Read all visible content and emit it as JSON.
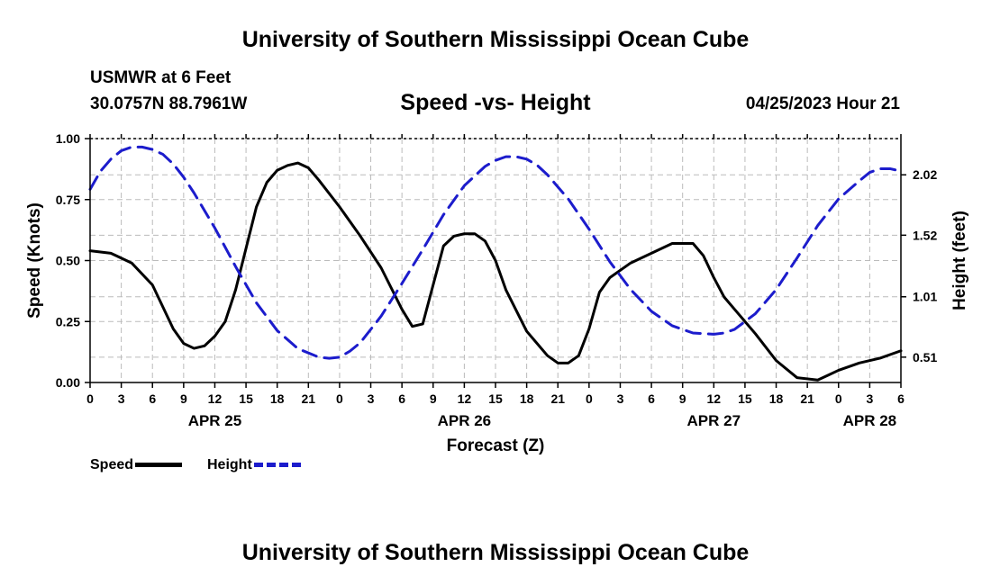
{
  "header": {
    "title": "University of Southern Mississippi Ocean Cube",
    "station": "USMWR at 6 Feet",
    "coords": "30.0757N  88.7961W",
    "subtitle": "Speed -vs- Height",
    "datetime": "04/25/2023 Hour 21"
  },
  "footer": {
    "title": "University of Southern Mississippi Ocean Cube"
  },
  "legend": {
    "speed": "Speed",
    "height": "Height"
  },
  "colors": {
    "speed": "#000000",
    "height": "#1c1ccc",
    "grid": "#bbbbbb"
  },
  "chart_data": {
    "type": "line",
    "title": "Speed -vs- Height",
    "xlabel": "Forecast (Z)",
    "ylabel": "Speed (Knots)",
    "ylabel_right": "Height (feet)",
    "xlim": [
      0,
      78
    ],
    "ylim": [
      0,
      1
    ],
    "ylim_right": [
      0.3,
      2.32
    ],
    "x_ticks": [
      0,
      3,
      6,
      9,
      12,
      15,
      18,
      21,
      24,
      27,
      30,
      33,
      36,
      39,
      42,
      45,
      48,
      51,
      54,
      57,
      60,
      63,
      66,
      69,
      72,
      75,
      78
    ],
    "x_tick_labels": [
      "0",
      "3",
      "6",
      "9",
      "12",
      "15",
      "18",
      "21",
      "0",
      "3",
      "6",
      "9",
      "12",
      "15",
      "18",
      "21",
      "0",
      "3",
      "6",
      "9",
      "12",
      "15",
      "18",
      "21",
      "0",
      "3",
      "6"
    ],
    "date_labels": [
      {
        "x": 12,
        "label": "APR 25"
      },
      {
        "x": 36,
        "label": "APR 26"
      },
      {
        "x": 60,
        "label": "APR 27"
      },
      {
        "x": 75,
        "label": "APR 28"
      }
    ],
    "y_ticks": [
      0,
      0.25,
      0.5,
      0.75,
      1.0
    ],
    "y_tick_labels": [
      "0.00",
      "0.25",
      "0.50",
      "0.75",
      "1.00"
    ],
    "y_ticks_right": [
      0.51,
      1.01,
      1.52,
      2.02
    ],
    "y_tick_labels_right": [
      "0.51",
      "1.01",
      "1.52",
      "2.02"
    ],
    "grid": true,
    "series": [
      {
        "name": "Speed",
        "axis": "left",
        "style": "solid",
        "x": [
          0,
          2,
          4,
          6,
          8,
          9,
          10,
          11,
          12,
          13,
          14,
          15,
          16,
          17,
          18,
          19,
          20,
          21,
          22,
          24,
          26,
          28,
          30,
          31,
          32,
          33,
          34,
          35,
          36,
          37,
          38,
          39,
          40,
          42,
          44,
          45,
          46,
          47,
          48,
          49,
          50,
          52,
          54,
          56,
          58,
          59,
          60,
          61,
          62,
          64,
          66,
          68,
          70,
          71,
          72,
          74,
          76,
          78
        ],
        "values": [
          0.54,
          0.53,
          0.49,
          0.4,
          0.22,
          0.16,
          0.14,
          0.15,
          0.19,
          0.25,
          0.38,
          0.55,
          0.72,
          0.82,
          0.87,
          0.89,
          0.9,
          0.88,
          0.83,
          0.72,
          0.6,
          0.47,
          0.3,
          0.23,
          0.24,
          0.4,
          0.56,
          0.6,
          0.61,
          0.61,
          0.58,
          0.5,
          0.38,
          0.21,
          0.11,
          0.08,
          0.08,
          0.11,
          0.22,
          0.37,
          0.43,
          0.49,
          0.53,
          0.57,
          0.57,
          0.52,
          0.43,
          0.35,
          0.3,
          0.2,
          0.09,
          0.02,
          0.01,
          0.03,
          0.05,
          0.08,
          0.1,
          0.13
        ]
      },
      {
        "name": "Height",
        "axis": "right",
        "style": "dashed",
        "x": [
          0,
          1,
          2,
          3,
          4,
          5,
          6,
          7,
          8,
          9,
          10,
          12,
          14,
          16,
          18,
          20,
          22,
          23,
          24,
          25,
          26,
          28,
          30,
          32,
          34,
          36,
          38,
          39,
          40,
          41,
          42,
          43,
          44,
          46,
          48,
          50,
          52,
          54,
          56,
          58,
          60,
          61,
          62,
          64,
          66,
          68,
          70,
          72,
          74,
          75,
          76,
          77,
          78
        ],
        "values": [
          1.9,
          2.05,
          2.15,
          2.22,
          2.25,
          2.25,
          2.23,
          2.19,
          2.11,
          2.0,
          1.87,
          1.58,
          1.26,
          0.96,
          0.73,
          0.58,
          0.51,
          0.5,
          0.51,
          0.56,
          0.63,
          0.85,
          1.12,
          1.4,
          1.69,
          1.93,
          2.09,
          2.14,
          2.17,
          2.17,
          2.15,
          2.1,
          2.02,
          1.82,
          1.57,
          1.3,
          1.07,
          0.89,
          0.77,
          0.71,
          0.7,
          0.71,
          0.74,
          0.87,
          1.07,
          1.33,
          1.6,
          1.82,
          1.97,
          2.04,
          2.07,
          2.07,
          2.05
        ]
      }
    ]
  }
}
